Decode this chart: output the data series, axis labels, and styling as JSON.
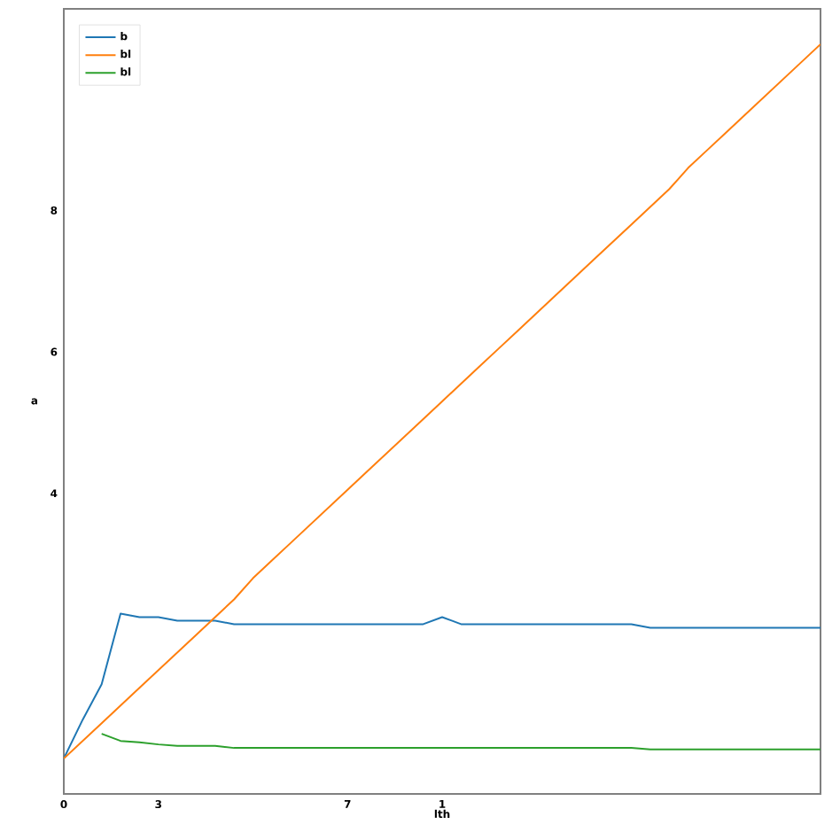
{
  "chart_data": {
    "type": "line",
    "xlabel": "lth",
    "ylabel": "a",
    "categories": [
      "0",
      null,
      null,
      null,
      null,
      "3",
      null,
      null,
      null,
      null,
      null,
      null,
      null,
      null,
      null,
      "7",
      null,
      null,
      null,
      null,
      "1",
      null,
      null,
      null,
      null,
      null,
      null,
      null,
      null,
      null,
      null,
      null,
      null,
      null,
      null,
      null,
      null,
      null,
      null,
      null,
      null
    ],
    "ylim": [
      -0.25,
      10.85
    ],
    "yticks": [
      4,
      6,
      8
    ],
    "legend": "top left",
    "grid": false,
    "marker": "none",
    "line_style": "solid",
    "series": [
      {
        "name": "b",
        "color": "#1f77b4",
        "values": [
          0.25,
          0.8,
          1.3,
          2.3,
          2.25,
          2.25,
          2.2,
          2.2,
          2.2,
          2.15,
          2.15,
          2.15,
          2.15,
          2.15,
          2.15,
          2.15,
          2.15,
          2.15,
          2.15,
          2.15,
          2.25,
          2.15,
          2.15,
          2.15,
          2.15,
          2.15,
          2.15,
          2.15,
          2.15,
          2.15,
          2.15,
          2.1,
          2.1,
          2.1,
          2.1,
          2.1,
          2.1,
          2.1,
          2.1,
          2.1,
          2.1
        ]
      },
      {
        "name": "bl",
        "color": "#ff7f0e",
        "values": [
          0.25,
          0.5,
          0.75,
          1.0,
          1.25,
          1.5,
          1.75,
          2.0,
          2.25,
          2.5,
          2.8,
          3.05,
          3.3,
          3.55,
          3.8,
          4.05,
          4.3,
          4.55,
          4.8,
          5.05,
          5.3,
          5.55,
          5.8,
          6.05,
          6.3,
          6.55,
          6.8,
          7.05,
          7.3,
          7.55,
          7.8,
          8.05,
          8.3,
          8.6,
          8.85,
          9.1,
          9.35,
          9.6,
          9.85,
          10.1,
          10.35
        ]
      },
      {
        "name": "bl",
        "color": "#2ca02c",
        "values": [
          null,
          null,
          0.6,
          0.5,
          0.48,
          0.45,
          0.43,
          0.43,
          0.43,
          0.4,
          0.4,
          0.4,
          0.4,
          0.4,
          0.4,
          0.4,
          0.4,
          0.4,
          0.4,
          0.4,
          0.4,
          0.4,
          0.4,
          0.4,
          0.4,
          0.4,
          0.4,
          0.4,
          0.4,
          0.4,
          0.4,
          0.38,
          0.38,
          0.38,
          0.38,
          0.38,
          0.38,
          0.38,
          0.38,
          0.38,
          0.38
        ]
      }
    ]
  }
}
